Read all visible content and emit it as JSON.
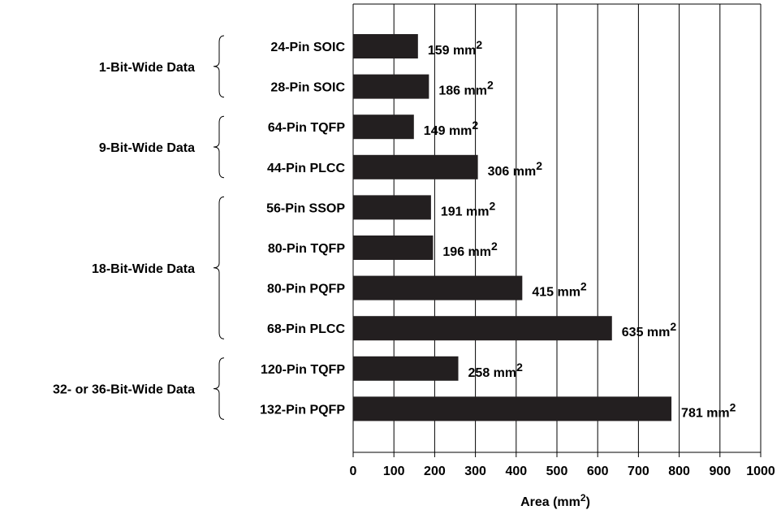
{
  "chart_data": {
    "type": "bar",
    "orientation": "horizontal",
    "xlabel_base": "Area (mm",
    "xlabel_sup": "2",
    "xlabel_end": ")",
    "xlim": [
      0,
      1000
    ],
    "xticks": [
      "0",
      "100",
      "200",
      "300",
      "400",
      "500",
      "600",
      "700",
      "800",
      "900",
      "1000"
    ],
    "grid": "vertical",
    "bar_color": "#231f20",
    "unit_base": "mm",
    "unit_sup": "2",
    "groups": [
      {
        "label": "1-Bit-Wide Data",
        "bars": [
          {
            "category": "24-Pin SOIC",
            "value": 159
          },
          {
            "category": "28-Pin SOIC",
            "value": 186
          }
        ]
      },
      {
        "label": "9-Bit-Wide Data",
        "bars": [
          {
            "category": "64-Pin TQFP",
            "value": 149
          },
          {
            "category": "44-Pin PLCC",
            "value": 306
          }
        ]
      },
      {
        "label": "18-Bit-Wide Data",
        "bars": [
          {
            "category": "56-Pin SSOP",
            "value": 191
          },
          {
            "category": "80-Pin TQFP",
            "value": 196
          },
          {
            "category": "80-Pin PQFP",
            "value": 415
          },
          {
            "category": "68-Pin PLCC",
            "value": 635
          }
        ]
      },
      {
        "label": "32- or 36-Bit-Wide Data",
        "bars": [
          {
            "category": "120-Pin TQFP",
            "value": 258
          },
          {
            "category": "132-Pin PQFP",
            "value": 781
          }
        ]
      }
    ]
  }
}
